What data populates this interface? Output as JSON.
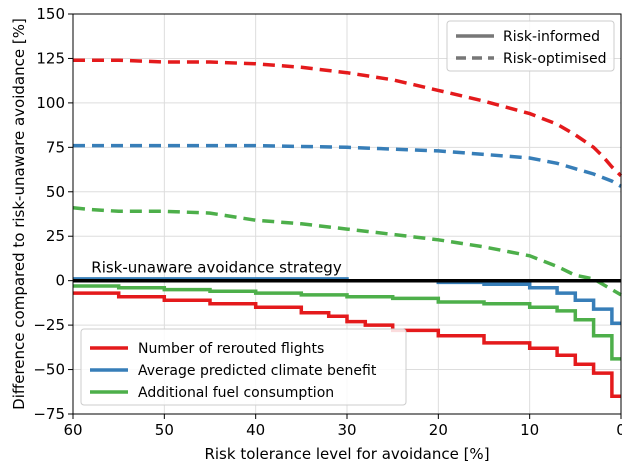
{
  "chart_data": {
    "type": "line",
    "xlabel": "Risk tolerance level for avoidance [%]",
    "ylabel": "Difference compared to risk-unaware avoidance [%]",
    "xlim": [
      60,
      0
    ],
    "ylim": [
      -75,
      150
    ],
    "x_ticks": [
      60,
      50,
      40,
      30,
      20,
      10,
      0
    ],
    "x_tick_labels": [
      "60",
      "50",
      "40",
      "30",
      "20",
      "10",
      "0"
    ],
    "y_ticks": [
      -75,
      -50,
      -25,
      0,
      25,
      50,
      75,
      100,
      125,
      150
    ],
    "y_tick_labels": [
      "−75",
      "−50",
      "−25",
      "0",
      "25",
      "50",
      "75",
      "100",
      "125",
      "150"
    ],
    "grid": true,
    "baseline": {
      "y": 0,
      "label": "Risk-unaware avoidance strategy",
      "color": "#000000"
    },
    "style_legend": {
      "placement": "top-right",
      "entries": [
        {
          "label": "Risk-informed",
          "style": "solid"
        },
        {
          "label": "Risk-optimised",
          "style": "dashed"
        }
      ]
    },
    "color_legend": {
      "placement": "bottom-left",
      "entries": [
        {
          "label": "Number of rerouted flights",
          "color": "#e41a1c"
        },
        {
          "label": "Average predicted climate benefit",
          "color": "#377eb8"
        },
        {
          "label": "Additional fuel consumption",
          "color": "#4daf4a"
        }
      ]
    },
    "series": [
      {
        "name": "Number of rerouted flights",
        "style": "dashed",
        "color": "#e41a1c",
        "step": false,
        "x": [
          60,
          55,
          50,
          45,
          40,
          35,
          30,
          25,
          20,
          15,
          10,
          7,
          5,
          3,
          2,
          1,
          0
        ],
        "y": [
          124,
          124,
          123,
          123,
          122,
          120,
          117,
          113,
          107,
          101,
          94,
          88,
          82,
          75,
          70,
          64,
          59
        ]
      },
      {
        "name": "Average predicted climate benefit",
        "style": "dashed",
        "color": "#377eb8",
        "step": false,
        "x": [
          60,
          50,
          40,
          30,
          20,
          15,
          10,
          7,
          5,
          3,
          1,
          0
        ],
        "y": [
          76,
          76,
          76,
          75,
          73,
          71,
          69,
          66,
          63,
          60,
          56,
          53
        ]
      },
      {
        "name": "Additional fuel consumption",
        "style": "dashed",
        "color": "#4daf4a",
        "step": false,
        "x": [
          60,
          58,
          55,
          50,
          45,
          40,
          35,
          30,
          25,
          20,
          15,
          10,
          7,
          5,
          4,
          3,
          2,
          1,
          0
        ],
        "y": [
          41,
          40,
          39,
          39,
          38,
          34,
          32,
          29,
          26,
          23,
          19,
          14,
          8,
          3,
          2,
          1,
          -2,
          -5,
          -8
        ]
      },
      {
        "name": "Number of rerouted flights",
        "style": "solid",
        "color": "#e41a1c",
        "step": true,
        "x": [
          60,
          55,
          50,
          45,
          40,
          35,
          32,
          30,
          28,
          25,
          20,
          15,
          10,
          7,
          5,
          3,
          1,
          0
        ],
        "y": [
          -7,
          -9,
          -11,
          -13,
          -15,
          -18,
          -20,
          -23,
          -25,
          -28,
          -31,
          -35,
          -38,
          -42,
          -47,
          -52,
          -65,
          -65
        ]
      },
      {
        "name": "Average predicted climate benefit",
        "style": "solid",
        "color": "#377eb8",
        "step": true,
        "x": [
          60,
          40,
          30,
          20,
          15,
          10,
          7,
          5,
          3,
          1,
          0
        ],
        "y": [
          1,
          1,
          0,
          -1,
          -2,
          -4,
          -7,
          -11,
          -16,
          -24,
          -24
        ]
      },
      {
        "name": "Additional fuel consumption",
        "style": "solid",
        "color": "#4daf4a",
        "step": true,
        "x": [
          60,
          55,
          50,
          45,
          40,
          35,
          30,
          25,
          20,
          15,
          10,
          7,
          5,
          3,
          1,
          0
        ],
        "y": [
          -3,
          -4,
          -5,
          -6,
          -7,
          -8,
          -9,
          -10,
          -12,
          -13,
          -15,
          -17,
          -22,
          -31,
          -44,
          -44
        ]
      },
      {
        "name": "Risk-unaware avoidance strategy",
        "style": "solid",
        "color": "#000000",
        "step": false,
        "x": [
          60,
          0
        ],
        "y": [
          0,
          0
        ]
      }
    ]
  }
}
